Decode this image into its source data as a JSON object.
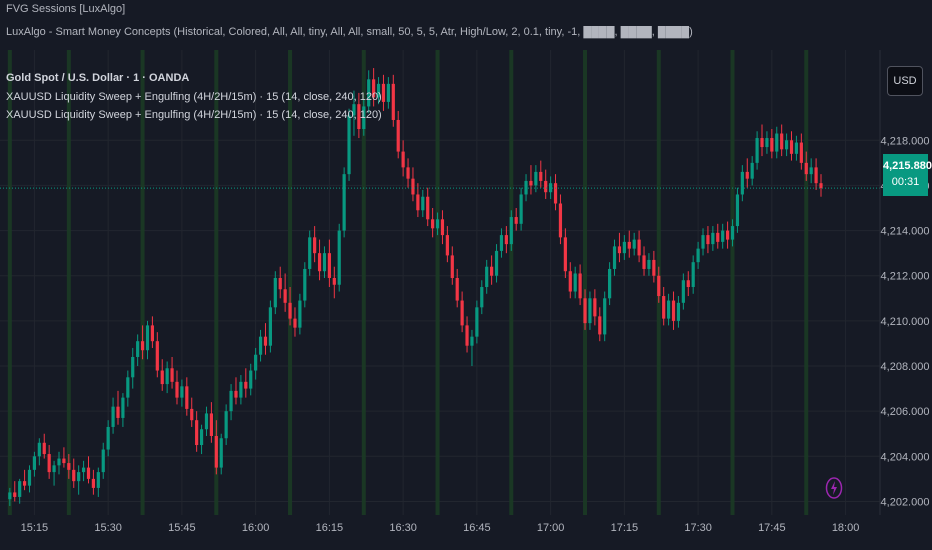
{
  "indicator_titles": {
    "line1": "FVG Sessions [LuxAlgo]",
    "line2": "LuxAlgo - Smart Money Concepts (Historical, Colored, All, All, tiny, All, All, small, 50, 5, 5, Atr, High/Low, 2, 0.1, tiny, -1, ████, ████, ████)"
  },
  "symbol_title": "Gold Spot / U.S. Dollar · 1 · OANDA",
  "studies": [
    "XAUUSD Liquidity Sweep + Engulfing (4H/2H/15m) · 15 (14, close, 240, 120)",
    "XAUUSD Liquidity Sweep + Engulfing (4H/2H/15m) · 15 (14, close, 240, 120)"
  ],
  "currency_label": "USD",
  "last_price": "4,215.880",
  "countdown": "00:31",
  "colors": {
    "background": "#161a25",
    "grid": "#22262f",
    "session_band": "#1b3b25",
    "up_candle": "#089981",
    "down_candle": "#f23645",
    "price_tag": "#089981",
    "text": "#b2b5be",
    "bolt": "#9c27b0"
  },
  "icons": {
    "alert": "lightning-bolt-icon"
  },
  "chart_data": {
    "type": "candlestick",
    "symbol": "XAUUSD",
    "timeframe": "1",
    "y_ticks": [
      4202,
      4204,
      4206,
      4208,
      4210,
      4212,
      4214,
      4216,
      4218
    ],
    "y_tick_labels": [
      "4,202.000",
      "4,204.000",
      "4,206.000",
      "4,208.000",
      "4,210.000",
      "4,212.000",
      "4,214.000",
      "4,216.000",
      "4,218.000"
    ],
    "x_tick_labels": [
      "15:15",
      "15:30",
      "15:45",
      "16:00",
      "16:15",
      "16:30",
      "16:45",
      "17:00",
      "17:15",
      "17:30",
      "17:45",
      "18:00"
    ],
    "ylim": [
      4201.4,
      4222.0
    ],
    "time_range": [
      "15:08",
      "18:07"
    ],
    "last_price": 4215.88,
    "session_band_times": [
      "15:10",
      "15:22",
      "15:37",
      "15:52",
      "16:07",
      "16:22",
      "16:37",
      "16:52",
      "17:07",
      "17:22",
      "17:37",
      "17:52"
    ],
    "candles": [
      [
        "15:10",
        4202.1,
        4202.6,
        4201.8,
        4202.4
      ],
      [
        "15:11",
        4202.4,
        4202.9,
        4202.0,
        4202.2
      ],
      [
        "15:12",
        4202.2,
        4203.0,
        4201.9,
        4202.9
      ],
      [
        "15:13",
        4202.9,
        4203.4,
        4202.5,
        4202.7
      ],
      [
        "15:14",
        4202.7,
        4203.6,
        4202.4,
        4203.4
      ],
      [
        "15:15",
        4203.4,
        4204.2,
        4203.1,
        4204.0
      ],
      [
        "15:16",
        4204.0,
        4204.8,
        4203.6,
        4204.6
      ],
      [
        "15:17",
        4204.6,
        4205.0,
        4203.9,
        4204.1
      ],
      [
        "15:18",
        4204.1,
        4204.5,
        4203.0,
        4203.3
      ],
      [
        "15:19",
        4203.3,
        4203.8,
        4202.7,
        4203.6
      ],
      [
        "15:20",
        4203.6,
        4204.2,
        4203.2,
        4203.9
      ],
      [
        "15:21",
        4203.9,
        4204.4,
        4203.5,
        4203.7
      ],
      [
        "15:22",
        4203.7,
        4204.1,
        4203.0,
        4203.4
      ],
      [
        "15:23",
        4203.4,
        4203.9,
        4202.6,
        4202.9
      ],
      [
        "15:24",
        4202.9,
        4203.6,
        4202.3,
        4203.3
      ],
      [
        "15:25",
        4203.3,
        4203.8,
        4202.9,
        4203.5
      ],
      [
        "15:26",
        4203.5,
        4204.0,
        4202.8,
        4203.0
      ],
      [
        "15:27",
        4203.0,
        4203.4,
        4202.3,
        4202.6
      ],
      [
        "15:28",
        4202.6,
        4203.5,
        4202.2,
        4203.3
      ],
      [
        "15:29",
        4203.3,
        4204.6,
        4203.0,
        4204.3
      ],
      [
        "15:30",
        4204.3,
        4205.6,
        4204.0,
        4205.3
      ],
      [
        "15:31",
        4205.3,
        4206.6,
        4205.0,
        4206.2
      ],
      [
        "15:32",
        4206.2,
        4206.9,
        4205.4,
        4205.7
      ],
      [
        "15:33",
        4205.7,
        4206.8,
        4205.3,
        4206.6
      ],
      [
        "15:34",
        4206.6,
        4207.8,
        4206.2,
        4207.5
      ],
      [
        "15:35",
        4207.5,
        4208.8,
        4207.0,
        4208.4
      ],
      [
        "15:36",
        4208.4,
        4209.4,
        4208.0,
        4209.1
      ],
      [
        "15:37",
        4209.1,
        4209.8,
        4208.3,
        4208.7
      ],
      [
        "15:38",
        4208.7,
        4210.0,
        4208.3,
        4209.8
      ],
      [
        "15:39",
        4209.8,
        4210.2,
        4208.8,
        4209.1
      ],
      [
        "15:40",
        4209.1,
        4209.5,
        4207.5,
        4207.8
      ],
      [
        "15:41",
        4207.8,
        4208.3,
        4206.9,
        4207.2
      ],
      [
        "15:42",
        4207.2,
        4208.2,
        4206.8,
        4207.9
      ],
      [
        "15:43",
        4207.9,
        4208.4,
        4207.0,
        4207.3
      ],
      [
        "15:44",
        4207.3,
        4207.8,
        4206.3,
        4206.6
      ],
      [
        "15:45",
        4206.6,
        4207.4,
        4206.2,
        4207.1
      ],
      [
        "15:46",
        4207.1,
        4207.5,
        4205.8,
        4206.1
      ],
      [
        "15:47",
        4206.1,
        4206.6,
        4205.3,
        4205.6
      ],
      [
        "15:48",
        4205.6,
        4206.0,
        4204.2,
        4204.5
      ],
      [
        "15:49",
        4204.5,
        4205.4,
        4204.1,
        4205.2
      ],
      [
        "15:50",
        4205.2,
        4206.2,
        4204.9,
        4205.9
      ],
      [
        "15:51",
        4205.9,
        4206.4,
        4204.6,
        4204.9
      ],
      [
        "15:52",
        4204.9,
        4205.6,
        4203.2,
        4203.5
      ],
      [
        "15:53",
        4203.5,
        4205.0,
        4203.2,
        4204.8
      ],
      [
        "15:54",
        4204.8,
        4206.3,
        4204.5,
        4206.0
      ],
      [
        "15:55",
        4206.0,
        4207.2,
        4205.6,
        4206.9
      ],
      [
        "15:56",
        4206.9,
        4207.5,
        4206.3,
        4206.6
      ],
      [
        "15:57",
        4206.6,
        4207.6,
        4206.3,
        4207.3
      ],
      [
        "15:58",
        4207.3,
        4207.9,
        4206.6,
        4207.0
      ],
      [
        "15:59",
        4207.0,
        4208.1,
        4206.7,
        4207.8
      ],
      [
        "16:00",
        4207.8,
        4208.8,
        4207.4,
        4208.5
      ],
      [
        "16:01",
        4208.5,
        4209.6,
        4208.2,
        4209.3
      ],
      [
        "16:02",
        4209.3,
        4209.9,
        4208.5,
        4208.9
      ],
      [
        "16:03",
        4208.9,
        4210.9,
        4208.6,
        4210.6
      ],
      [
        "16:04",
        4210.6,
        4212.2,
        4210.3,
        4211.9
      ],
      [
        "16:05",
        4211.9,
        4212.4,
        4211.0,
        4211.4
      ],
      [
        "16:06",
        4211.4,
        4212.1,
        4210.4,
        4210.8
      ],
      [
        "16:07",
        4210.8,
        4211.5,
        4209.8,
        4210.1
      ],
      [
        "16:08",
        4210.1,
        4210.6,
        4209.3,
        4209.7
      ],
      [
        "16:09",
        4209.7,
        4211.2,
        4209.4,
        4210.9
      ],
      [
        "16:10",
        4210.9,
        4212.6,
        4210.6,
        4212.3
      ],
      [
        "16:11",
        4212.3,
        4214.0,
        4212.0,
        4213.7
      ],
      [
        "16:12",
        4213.7,
        4214.2,
        4212.6,
        4213.0
      ],
      [
        "16:13",
        4213.0,
        4213.6,
        4211.8,
        4212.2
      ],
      [
        "16:14",
        4212.2,
        4213.3,
        4211.9,
        4213.0
      ],
      [
        "16:15",
        4213.0,
        4213.6,
        4211.5,
        4211.9
      ],
      [
        "16:16",
        4211.9,
        4212.4,
        4211.0,
        4211.6
      ],
      [
        "16:17",
        4211.6,
        4214.3,
        4211.3,
        4214.0
      ],
      [
        "16:18",
        4214.0,
        4216.8,
        4213.7,
        4216.5
      ],
      [
        "16:19",
        4216.5,
        4219.4,
        4216.2,
        4219.1
      ],
      [
        "16:20",
        4219.1,
        4220.2,
        4218.2,
        4219.6
      ],
      [
        "16:21",
        4219.6,
        4220.1,
        4218.1,
        4218.5
      ],
      [
        "16:22",
        4218.5,
        4219.8,
        4218.2,
        4219.5
      ],
      [
        "16:23",
        4219.5,
        4221.1,
        4219.2,
        4220.7
      ],
      [
        "16:24",
        4220.7,
        4221.2,
        4219.5,
        4219.9
      ],
      [
        "16:25",
        4219.9,
        4220.8,
        4219.6,
        4220.5
      ],
      [
        "16:26",
        4220.5,
        4220.9,
        4219.3,
        4219.7
      ],
      [
        "16:27",
        4219.7,
        4220.8,
        4219.4,
        4220.5
      ],
      [
        "16:28",
        4220.5,
        4220.9,
        4218.6,
        4218.9
      ],
      [
        "16:29",
        4218.9,
        4219.3,
        4217.2,
        4217.5
      ],
      [
        "16:30",
        4217.5,
        4218.0,
        4216.4,
        4216.8
      ],
      [
        "16:31",
        4216.8,
        4217.2,
        4215.9,
        4216.3
      ],
      [
        "16:32",
        4216.3,
        4216.8,
        4215.3,
        4215.6
      ],
      [
        "16:33",
        4215.6,
        4216.1,
        4214.6,
        4214.9
      ],
      [
        "16:34",
        4214.9,
        4215.8,
        4214.6,
        4215.5
      ],
      [
        "16:35",
        4215.5,
        4215.9,
        4214.2,
        4214.5
      ],
      [
        "16:36",
        4214.5,
        4215.0,
        4213.7,
        4214.1
      ],
      [
        "16:37",
        4214.1,
        4214.8,
        4213.8,
        4214.5
      ],
      [
        "16:38",
        4214.5,
        4214.9,
        4213.4,
        4213.8
      ],
      [
        "16:39",
        4213.8,
        4214.2,
        4212.6,
        4212.9
      ],
      [
        "16:40",
        4212.9,
        4213.3,
        4211.6,
        4211.9
      ],
      [
        "16:41",
        4211.9,
        4212.3,
        4210.6,
        4210.9
      ],
      [
        "16:42",
        4210.9,
        4211.3,
        4209.5,
        4209.8
      ],
      [
        "16:43",
        4209.8,
        4210.2,
        4208.6,
        4208.9
      ],
      [
        "16:44",
        4208.9,
        4209.6,
        4208.0,
        4209.3
      ],
      [
        "16:45",
        4209.3,
        4210.9,
        4209.0,
        4210.6
      ],
      [
        "16:46",
        4210.6,
        4211.8,
        4210.3,
        4211.5
      ],
      [
        "16:47",
        4211.5,
        4212.7,
        4211.2,
        4212.4
      ],
      [
        "16:48",
        4212.4,
        4212.9,
        4211.6,
        4212.0
      ],
      [
        "16:49",
        4212.0,
        4213.4,
        4211.7,
        4213.1
      ],
      [
        "16:50",
        4213.1,
        4214.1,
        4212.8,
        4213.8
      ],
      [
        "16:51",
        4213.8,
        4214.2,
        4213.0,
        4213.4
      ],
      [
        "16:52",
        4213.4,
        4214.9,
        4213.1,
        4214.6
      ],
      [
        "16:53",
        4214.6,
        4215.0,
        4214.0,
        4214.3
      ],
      [
        "16:54",
        4214.3,
        4215.9,
        4214.0,
        4215.6
      ],
      [
        "16:55",
        4215.6,
        4216.5,
        4215.3,
        4216.2
      ],
      [
        "16:56",
        4216.2,
        4216.9,
        4215.6,
        4216.0
      ],
      [
        "16:57",
        4216.0,
        4216.9,
        4215.7,
        4216.6
      ],
      [
        "16:58",
        4216.6,
        4217.1,
        4215.9,
        4216.2
      ],
      [
        "16:59",
        4216.2,
        4216.7,
        4215.4,
        4215.7
      ],
      [
        "17:00",
        4215.7,
        4216.4,
        4215.4,
        4216.1
      ],
      [
        "17:01",
        4216.1,
        4216.5,
        4214.9,
        4215.2
      ],
      [
        "17:02",
        4215.2,
        4215.6,
        4213.4,
        4213.7
      ],
      [
        "17:03",
        4213.7,
        4214.1,
        4211.9,
        4212.2
      ],
      [
        "17:04",
        4212.2,
        4212.6,
        4211.0,
        4211.3
      ],
      [
        "17:05",
        4211.3,
        4212.4,
        4211.0,
        4212.1
      ],
      [
        "17:06",
        4212.1,
        4212.5,
        4210.7,
        4211.0
      ],
      [
        "17:07",
        4211.0,
        4211.4,
        4209.6,
        4209.9
      ],
      [
        "17:08",
        4209.9,
        4211.3,
        4209.6,
        4211.0
      ],
      [
        "17:09",
        4211.0,
        4211.4,
        4209.8,
        4210.2
      ],
      [
        "17:10",
        4210.2,
        4210.6,
        4209.1,
        4209.4
      ],
      [
        "17:11",
        4209.4,
        4211.3,
        4209.1,
        4211.0
      ],
      [
        "17:12",
        4211.0,
        4212.6,
        4210.7,
        4212.3
      ],
      [
        "17:13",
        4212.3,
        4213.6,
        4212.0,
        4213.3
      ],
      [
        "17:14",
        4213.3,
        4213.9,
        4212.6,
        4213.0
      ],
      [
        "17:15",
        4213.0,
        4213.8,
        4212.7,
        4213.5
      ],
      [
        "17:16",
        4213.5,
        4214.0,
        4212.8,
        4213.2
      ],
      [
        "17:17",
        4213.2,
        4213.9,
        4212.9,
        4213.6
      ],
      [
        "17:18",
        4213.6,
        4214.0,
        4212.6,
        4212.9
      ],
      [
        "17:19",
        4212.9,
        4213.3,
        4212.0,
        4212.3
      ],
      [
        "17:20",
        4212.3,
        4213.0,
        4212.0,
        4212.7
      ],
      [
        "17:21",
        4212.7,
        4213.1,
        4211.7,
        4212.0
      ],
      [
        "17:22",
        4212.0,
        4212.4,
        4210.8,
        4211.1
      ],
      [
        "17:23",
        4211.1,
        4211.5,
        4209.8,
        4210.1
      ],
      [
        "17:24",
        4210.1,
        4211.2,
        4209.8,
        4210.9
      ],
      [
        "17:25",
        4210.9,
        4211.3,
        4209.6,
        4210.0
      ],
      [
        "17:26",
        4210.0,
        4211.1,
        4209.7,
        4210.8
      ],
      [
        "17:27",
        4210.8,
        4212.1,
        4210.5,
        4211.8
      ],
      [
        "17:28",
        4211.8,
        4212.2,
        4211.1,
        4211.5
      ],
      [
        "17:29",
        4211.5,
        4212.9,
        4211.2,
        4212.6
      ],
      [
        "17:30",
        4212.6,
        4213.5,
        4212.3,
        4213.2
      ],
      [
        "17:31",
        4213.2,
        4214.1,
        4212.9,
        4213.8
      ],
      [
        "17:32",
        4213.8,
        4214.2,
        4213.0,
        4213.4
      ],
      [
        "17:33",
        4213.4,
        4214.2,
        4213.1,
        4213.9
      ],
      [
        "17:34",
        4213.9,
        4214.3,
        4213.2,
        4213.5
      ],
      [
        "17:35",
        4213.5,
        4214.3,
        4213.2,
        4214.0
      ],
      [
        "17:36",
        4214.0,
        4214.4,
        4213.2,
        4213.6
      ],
      [
        "17:37",
        4213.6,
        4214.5,
        4213.3,
        4214.2
      ],
      [
        "17:38",
        4214.2,
        4215.9,
        4213.9,
        4215.6
      ],
      [
        "17:39",
        4215.6,
        4216.9,
        4215.3,
        4216.6
      ],
      [
        "17:40",
        4216.6,
        4217.2,
        4215.9,
        4216.3
      ],
      [
        "17:41",
        4216.3,
        4217.3,
        4216.0,
        4217.0
      ],
      [
        "17:42",
        4217.0,
        4218.4,
        4216.7,
        4218.1
      ],
      [
        "17:43",
        4218.1,
        4218.7,
        4217.3,
        4217.7
      ],
      [
        "17:44",
        4217.7,
        4218.4,
        4217.4,
        4218.1
      ],
      [
        "17:45",
        4218.1,
        4218.5,
        4217.2,
        4217.5
      ],
      [
        "17:46",
        4217.5,
        4218.6,
        4217.2,
        4218.3
      ],
      [
        "17:47",
        4218.3,
        4218.7,
        4217.3,
        4217.6
      ],
      [
        "17:48",
        4217.6,
        4218.3,
        4217.3,
        4218.0
      ],
      [
        "17:49",
        4218.0,
        4218.4,
        4217.1,
        4217.4
      ],
      [
        "17:50",
        4217.4,
        4218.2,
        4217.1,
        4217.9
      ],
      [
        "17:51",
        4217.9,
        4218.3,
        4216.7,
        4217.0
      ],
      [
        "17:52",
        4217.0,
        4217.5,
        4216.2,
        4216.5
      ],
      [
        "17:53",
        4216.5,
        4217.2,
        4216.1,
        4216.8
      ],
      [
        "17:54",
        4216.8,
        4217.2,
        4215.8,
        4216.1
      ],
      [
        "17:55",
        4216.1,
        4216.5,
        4215.5,
        4215.88
      ]
    ]
  }
}
